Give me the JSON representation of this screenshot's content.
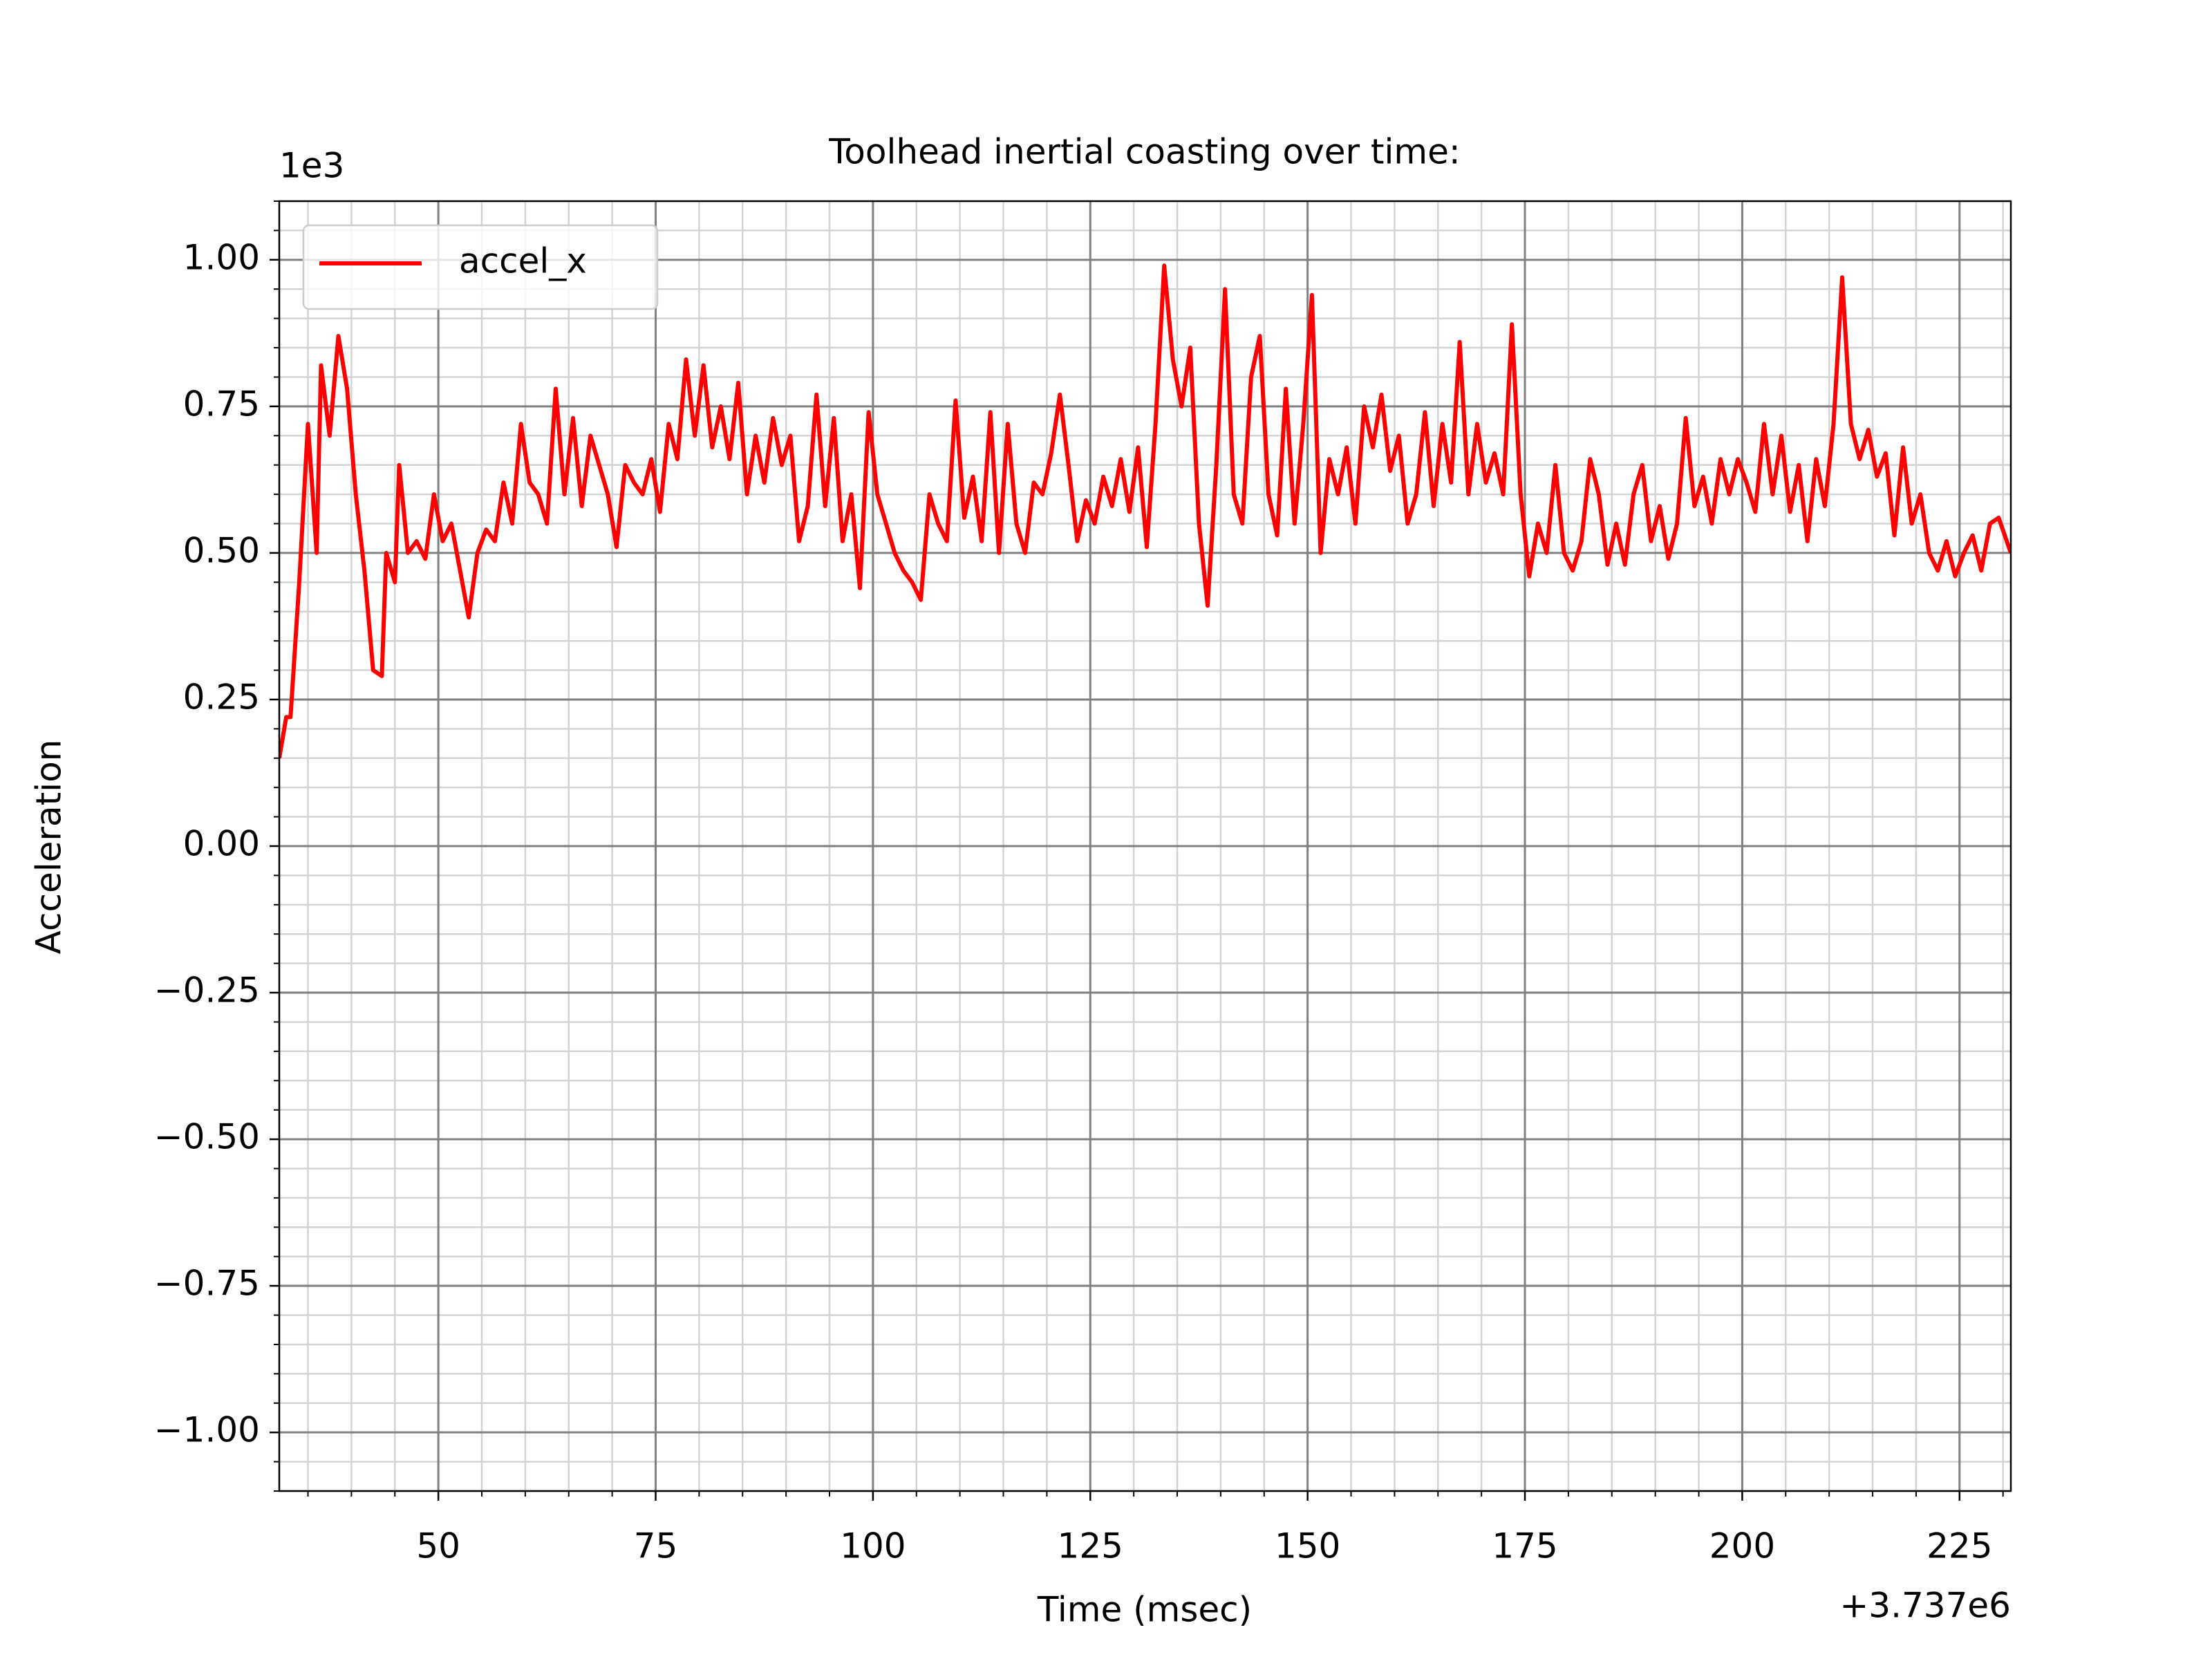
{
  "chart_data": {
    "type": "line",
    "title": "Toolhead inertial coasting over time:",
    "xlabel": "Time (msec)",
    "ylabel": "Acceleration",
    "x_offset_label": "+3.737e6",
    "y_multiplier_label": "1e3",
    "legend": "upper left",
    "grid": true,
    "minor_grid": true,
    "xminor": 5,
    "yminor": 0.05,
    "xlim": [
      31.7,
      230.9
    ],
    "ylim": [
      -1.1,
      1.1
    ],
    "xticks": [
      50,
      75,
      100,
      125,
      150,
      175,
      200,
      225
    ],
    "yticks": [
      {
        "value": -1,
        "label": "−1.00"
      },
      {
        "value": -0.75,
        "label": "−0.75"
      },
      {
        "value": -0.5,
        "label": "−0.50"
      },
      {
        "value": -0.25,
        "label": "−0.25"
      },
      {
        "value": 0,
        "label": "0.00"
      },
      {
        "value": 0.25,
        "label": "0.25"
      },
      {
        "value": 0.5,
        "label": "0.50"
      },
      {
        "value": 0.75,
        "label": "0.75"
      },
      {
        "value": 1,
        "label": "1.00"
      }
    ],
    "x": [
      31.7,
      32.5,
      33,
      34,
      35,
      36,
      36.5,
      37.5,
      38.5,
      39.5,
      40.5,
      41.5,
      42.5,
      43.5,
      44,
      45,
      45.5,
      46.5,
      47.5,
      48.5,
      49.5,
      50.5,
      51.5,
      52.5,
      53.5,
      54.5,
      55.5,
      56.5,
      57.5,
      58.5,
      59.5,
      60.5,
      61.5,
      62.5,
      63.5,
      64.5,
      65.5,
      66.5,
      67.5,
      68.5,
      69.5,
      70.5,
      71.5,
      72.5,
      73.5,
      74.5,
      75.5,
      76.5,
      77.5,
      78.5,
      79.5,
      80.5,
      81.5,
      82.5,
      83.5,
      84.5,
      85.5,
      86.5,
      87.5,
      88.5,
      89.5,
      90.5,
      91.5,
      92.5,
      93.5,
      94.5,
      95.5,
      96.5,
      97.5,
      98.5,
      99.5,
      100.5,
      101.5,
      102.5,
      103.5,
      104.5,
      105.5,
      106.5,
      107.5,
      108.5,
      109.5,
      110.5,
      111.5,
      112.5,
      113.5,
      114.5,
      115.5,
      116.5,
      117.5,
      118.5,
      119.5,
      120.5,
      121.5,
      122.5,
      123.5,
      124.5,
      125.5,
      126.5,
      127.5,
      128.5,
      129.5,
      130.5,
      131.5,
      132.5,
      133.5,
      134.5,
      135.5,
      136.5,
      137.5,
      138.5,
      139.5,
      140.5,
      141.5,
      142.5,
      143.5,
      144.5,
      145.5,
      146.5,
      147.5,
      148.5,
      149.5,
      150.5,
      151.5,
      152.5,
      153.5,
      154.5,
      155.5,
      156.5,
      157.5,
      158.5,
      159.5,
      160.5,
      161.5,
      162.5,
      163.5,
      164.5,
      165.5,
      166.5,
      167.5,
      168.5,
      169.5,
      170.5,
      171.5,
      172.5,
      173.5,
      174.5,
      175.5,
      176.5,
      177.5,
      178.5,
      179.5,
      180.5,
      181.5,
      182.5,
      183.5,
      184.5,
      185.5,
      186.5,
      187.5,
      188.5,
      189.5,
      190.5,
      191.5,
      192.5,
      193.5,
      194.5,
      195.5,
      196.5,
      197.5,
      198.5,
      199.5,
      200.5,
      201.5,
      202.5,
      203.5,
      204.5,
      205.5,
      206.5,
      207.5,
      208.5,
      209.5,
      210.5,
      211.5,
      212.5,
      213.5,
      214.5,
      215.5,
      216.5,
      217.5,
      218.5,
      219.5,
      220.5,
      221.5,
      222.5,
      223.5,
      224.5,
      225.5,
      226.5,
      227.5,
      228.5,
      229.5,
      230.9
    ],
    "series": [
      {
        "name": "accel_x",
        "color": "#ff0000",
        "values": [
          0.15,
          0.22,
          0.22,
          0.45,
          0.72,
          0.5,
          0.82,
          0.7,
          0.87,
          0.78,
          0.6,
          0.47,
          0.3,
          0.29,
          0.5,
          0.45,
          0.65,
          0.5,
          0.52,
          0.49,
          0.6,
          0.52,
          0.55,
          0.47,
          0.39,
          0.5,
          0.54,
          0.52,
          0.62,
          0.55,
          0.72,
          0.62,
          0.6,
          0.55,
          0.78,
          0.6,
          0.73,
          0.58,
          0.7,
          0.65,
          0.6,
          0.51,
          0.65,
          0.62,
          0.6,
          0.66,
          0.57,
          0.72,
          0.66,
          0.83,
          0.7,
          0.82,
          0.68,
          0.75,
          0.66,
          0.79,
          0.6,
          0.7,
          0.62,
          0.73,
          0.65,
          0.7,
          0.52,
          0.58,
          0.77,
          0.58,
          0.73,
          0.52,
          0.6,
          0.44,
          0.74,
          0.6,
          0.55,
          0.5,
          0.47,
          0.45,
          0.42,
          0.6,
          0.55,
          0.52,
          0.76,
          0.56,
          0.63,
          0.52,
          0.74,
          0.5,
          0.72,
          0.55,
          0.5,
          0.62,
          0.6,
          0.67,
          0.77,
          0.65,
          0.52,
          0.59,
          0.55,
          0.63,
          0.58,
          0.66,
          0.57,
          0.68,
          0.51,
          0.72,
          0.99,
          0.83,
          0.75,
          0.85,
          0.55,
          0.41,
          0.65,
          0.95,
          0.6,
          0.55,
          0.8,
          0.87,
          0.6,
          0.53,
          0.78,
          0.55,
          0.72,
          0.94,
          0.5,
          0.66,
          0.6,
          0.68,
          0.55,
          0.75,
          0.68,
          0.77,
          0.64,
          0.7,
          0.55,
          0.6,
          0.74,
          0.58,
          0.72,
          0.62,
          0.86,
          0.6,
          0.72,
          0.62,
          0.67,
          0.6,
          0.89,
          0.6,
          0.46,
          0.55,
          0.5,
          0.65,
          0.5,
          0.47,
          0.52,
          0.66,
          0.6,
          0.48,
          0.55,
          0.48,
          0.6,
          0.65,
          0.52,
          0.58,
          0.49,
          0.55,
          0.73,
          0.58,
          0.63,
          0.55,
          0.66,
          0.6,
          0.66,
          0.62,
          0.57,
          0.72,
          0.6,
          0.7,
          0.57,
          0.65,
          0.52,
          0.66,
          0.58,
          0.72,
          0.97,
          0.72,
          0.66,
          0.71,
          0.63,
          0.67,
          0.53,
          0.68,
          0.55,
          0.6,
          0.5,
          0.47,
          0.52,
          0.46,
          0.5,
          0.53,
          0.47,
          0.55,
          0.56,
          0.5
        ]
      }
    ]
  }
}
